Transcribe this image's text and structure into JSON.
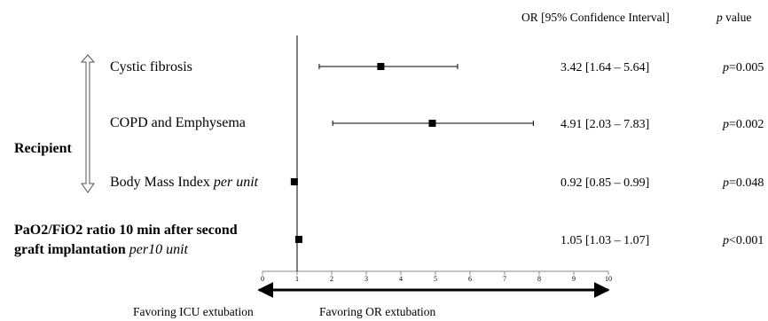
{
  "header": {
    "or_ci": "OR [95% Confidence Interval]",
    "p_italic": "p",
    "p_rest": " value"
  },
  "group": {
    "label": "Recipient"
  },
  "labels": {
    "cf": "Cystic fibrosis",
    "copd": "COPD and Emphysema",
    "bmi": "Body Mass Index ",
    "bmi_italic": "per unit",
    "pao2_line1": "PaO2/FiO2 ratio 10 min after second",
    "pao2_line2": "graft implantation ",
    "pao2_italic": "per10 unit"
  },
  "favoring": {
    "left": "Favoring ICU extubation",
    "right": "Favoring OR extubation"
  },
  "chart_data": {
    "type": "forest",
    "reference_line": 1,
    "xlim": [
      0,
      10
    ],
    "xticks": [
      "0",
      "1",
      "2",
      "3",
      "4",
      "5",
      "6",
      "7",
      "8",
      "9",
      "10"
    ],
    "rows": [
      {
        "label": "Cystic fibrosis",
        "or": 3.42,
        "lo": 1.64,
        "hi": 5.64,
        "ci_text": "3.42 [1.64 – 5.64]",
        "p_text": "=0.005"
      },
      {
        "label": "COPD and Emphysema",
        "or": 4.91,
        "lo": 2.03,
        "hi": 7.83,
        "ci_text": "4.91 [2.03 – 7.83]",
        "p_text": "=0.002"
      },
      {
        "label": "Body Mass Index per unit",
        "or": 0.92,
        "lo": 0.85,
        "hi": 0.99,
        "ci_text": "0.92 [0.85 – 0.99]",
        "p_text": "=0.048"
      },
      {
        "label": "PaO2/FiO2 ratio 10 min after second graft implantation per10 unit",
        "or": 1.05,
        "lo": 1.03,
        "hi": 1.07,
        "ci_text": "1.05 [1.03 – 1.07]",
        "p_text": "<0.001"
      }
    ]
  }
}
